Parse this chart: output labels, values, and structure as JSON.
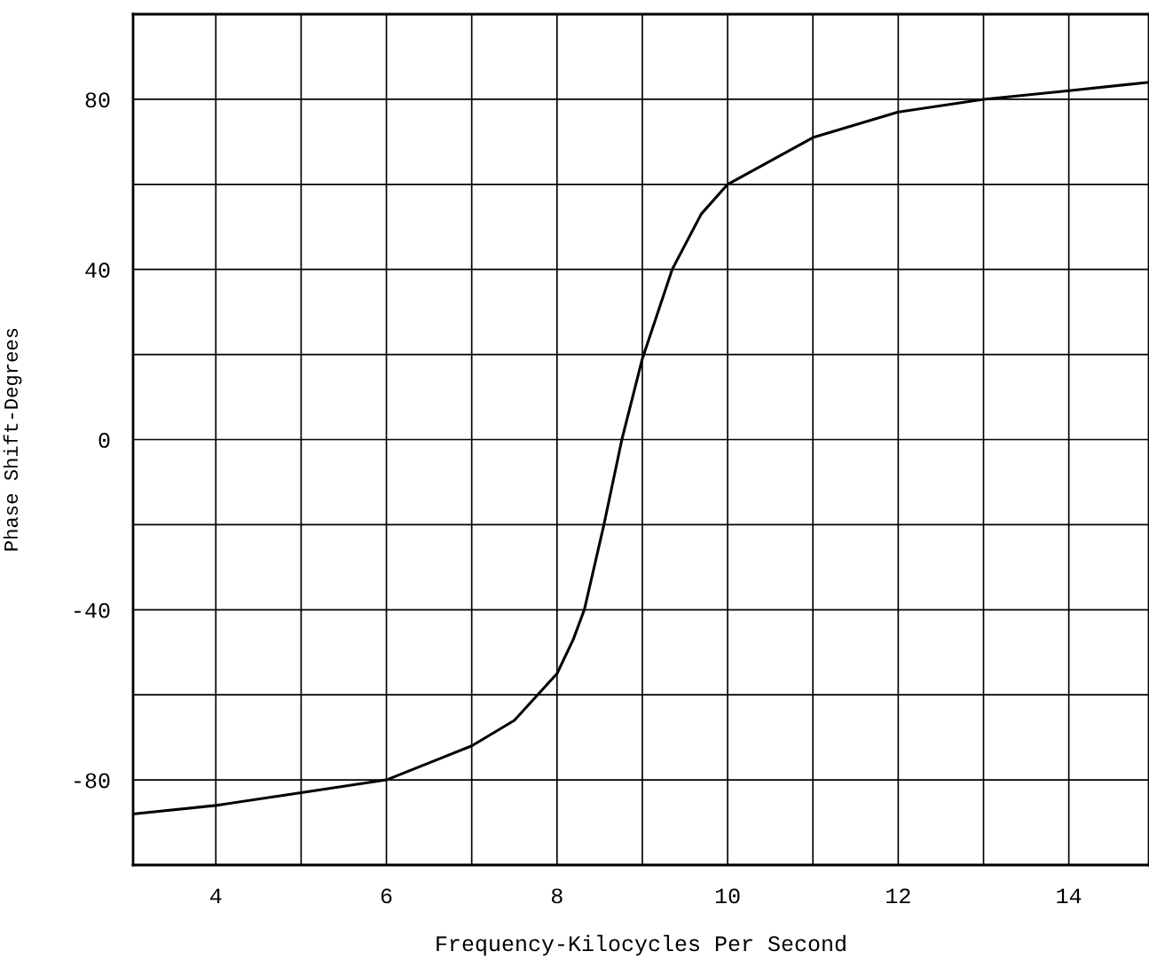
{
  "chart_data": {
    "type": "line",
    "xlabel": "Frequency-Kilocycles Per Second",
    "ylabel": "Phase Shift-Degrees",
    "x": [
      3.03,
      4,
      5,
      6,
      7,
      7.5,
      8,
      8.19,
      8.32,
      8.55,
      8.76,
      9,
      9.35,
      9.69,
      10,
      11,
      12,
      13,
      14,
      14.94
    ],
    "series": [
      {
        "color": "#000000",
        "values": [
          -88,
          -86,
          -83,
          -80,
          -72,
          -66,
          -55,
          -47,
          -40,
          -20,
          0,
          19,
          40,
          53,
          60,
          71,
          77,
          80,
          82,
          84
        ]
      }
    ],
    "xlim": [
      3.03,
      14.94
    ],
    "ylim": [
      -100,
      100
    ],
    "xticks": [
      4,
      {
        "value": 5,
        "label": null
      },
      6,
      {
        "value": 7,
        "label": null
      },
      8,
      {
        "value": 9,
        "label": null
      },
      10,
      {
        "value": 11,
        "label": null
      },
      12,
      {
        "value": 13,
        "label": null
      },
      14
    ],
    "yticks": [
      {
        "value": -100,
        "label": null
      },
      -80,
      {
        "value": -60,
        "label": null
      },
      -40,
      {
        "value": -20,
        "label": null
      },
      0,
      {
        "value": 20,
        "label": null
      },
      40,
      {
        "value": 60,
        "label": null
      },
      80,
      {
        "value": 100,
        "label": null
      }
    ],
    "grid": true,
    "marker": "none",
    "line_style": "solid"
  }
}
